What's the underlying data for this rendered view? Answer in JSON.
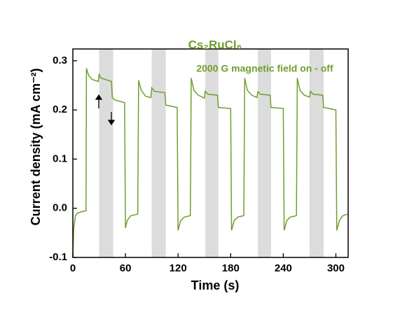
{
  "chart_data": {
    "type": "line",
    "annotations": [
      "Cs₂RuCl₆",
      "2000 G magnetic field on - off"
    ],
    "xlabel": "Time (s)",
    "ylabel": "Current density (mA cm⁻²)",
    "xlim": [
      0,
      314
    ],
    "ylim": [
      -0.1,
      0.324
    ],
    "xticks": [
      0,
      60,
      120,
      180,
      240,
      300
    ],
    "yticks": [
      -0.1,
      {
        "value": 0,
        "label": "0.0"
      },
      0.1,
      0.2,
      0.3
    ],
    "line_color": "#6f9f2e",
    "shade_color": "#dcdcdc",
    "shaded_regions": [
      [
        30,
        46
      ],
      [
        90,
        106
      ],
      [
        151,
        166
      ],
      [
        211,
        226
      ],
      [
        270,
        286
      ]
    ],
    "x": [
      0,
      1,
      3,
      5,
      10,
      15,
      15.5,
      18,
      22,
      29,
      30,
      32,
      44,
      45,
      48,
      59,
      60,
      62,
      66,
      74,
      75,
      78,
      83,
      89,
      90,
      93,
      105,
      106,
      119,
      120,
      123,
      127,
      134,
      135,
      138,
      143,
      150,
      151,
      154,
      165,
      166,
      180,
      181,
      184,
      188,
      195,
      196,
      199,
      204,
      210,
      211,
      214,
      225,
      226,
      240,
      241,
      244,
      248,
      255,
      256,
      259,
      264,
      270,
      271,
      274,
      285,
      286,
      300,
      301,
      304,
      308,
      313
    ],
    "values": [
      -0.1,
      -0.04,
      -0.015,
      -0.01,
      -0.007,
      -0.005,
      0.285,
      0.27,
      0.262,
      0.258,
      0.272,
      0.265,
      0.258,
      0.225,
      0.22,
      0.215,
      -0.04,
      -0.025,
      -0.015,
      -0.012,
      0.26,
      0.24,
      0.228,
      0.225,
      0.245,
      0.238,
      0.235,
      0.21,
      0.205,
      -0.045,
      -0.025,
      -0.018,
      -0.015,
      0.265,
      0.24,
      0.23,
      0.224,
      0.238,
      0.232,
      0.23,
      0.205,
      0.203,
      -0.045,
      -0.025,
      -0.018,
      -0.015,
      0.265,
      0.24,
      0.23,
      0.225,
      0.237,
      0.232,
      0.23,
      0.205,
      0.203,
      -0.045,
      -0.025,
      -0.018,
      -0.015,
      0.265,
      0.24,
      0.23,
      0.226,
      0.238,
      0.232,
      0.23,
      0.205,
      0.2,
      -0.045,
      -0.025,
      -0.015,
      -0.012
    ]
  }
}
